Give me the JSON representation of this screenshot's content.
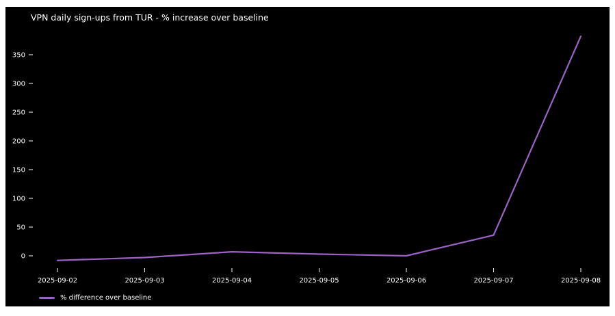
{
  "frame": {
    "background": "#ffffff",
    "canvas_background": "#000000",
    "text_color": "#ffffff"
  },
  "chart_data": {
    "type": "line",
    "title": "VPN daily sign-ups from TUR - % increase over baseline",
    "x": [
      "2025-09-02",
      "2025-09-03",
      "2025-09-04",
      "2025-09-05",
      "2025-09-06",
      "2025-09-07",
      "2025-09-08"
    ],
    "series": [
      {
        "name": "% difference over baseline",
        "color": "#9b63c6",
        "values": [
          -8,
          -3,
          7,
          3,
          0,
          36,
          382
        ]
      }
    ],
    "xlabel": "",
    "ylabel": "",
    "yticks": [
      0,
      50,
      100,
      150,
      200,
      250,
      300,
      350
    ],
    "ylim": [
      -21,
      397
    ],
    "grid": false,
    "legend_position": "lower-left",
    "background": "#000000",
    "tick_color": "#ffffff"
  }
}
